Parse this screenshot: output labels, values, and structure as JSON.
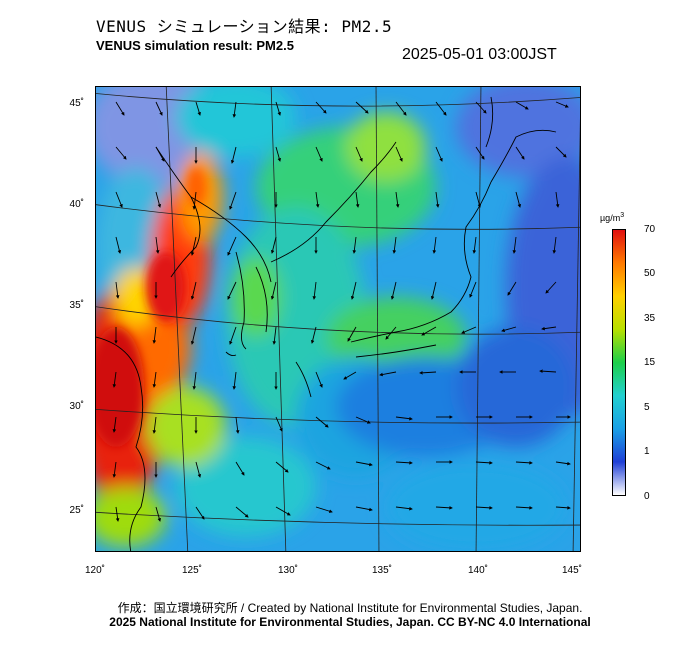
{
  "title_jp": "VENUS シミュレーション結果: PM2.5",
  "title_en": "VENUS simulation result: PM2.5",
  "timestamp": "2025-05-01 03:00JST",
  "lat_ticks": [
    "45˚",
    "40˚",
    "35˚",
    "30˚",
    "25˚"
  ],
  "lon_ticks": [
    "120˚",
    "125˚",
    "130˚",
    "135˚",
    "140˚",
    "145˚"
  ],
  "colorbar": {
    "unit": "µg/m",
    "unit_sup": "3",
    "ticks": [
      "70",
      "50",
      "35",
      "15",
      "5",
      "1",
      "0"
    ],
    "colors": [
      "#ffffff",
      "#1f3fd6",
      "#1aa0e6",
      "#22d0d0",
      "#1ccf4a",
      "#b8e000",
      "#ffd000",
      "#ff7a00",
      "#e01010"
    ]
  },
  "credit_line": "作成：国立環境研究所 / Created by National Institute for Environmental Studies, Japan.",
  "copyright_line": "2025 National Institute for Environmental Studies, Japan. CC BY-NC 4.0 International"
}
